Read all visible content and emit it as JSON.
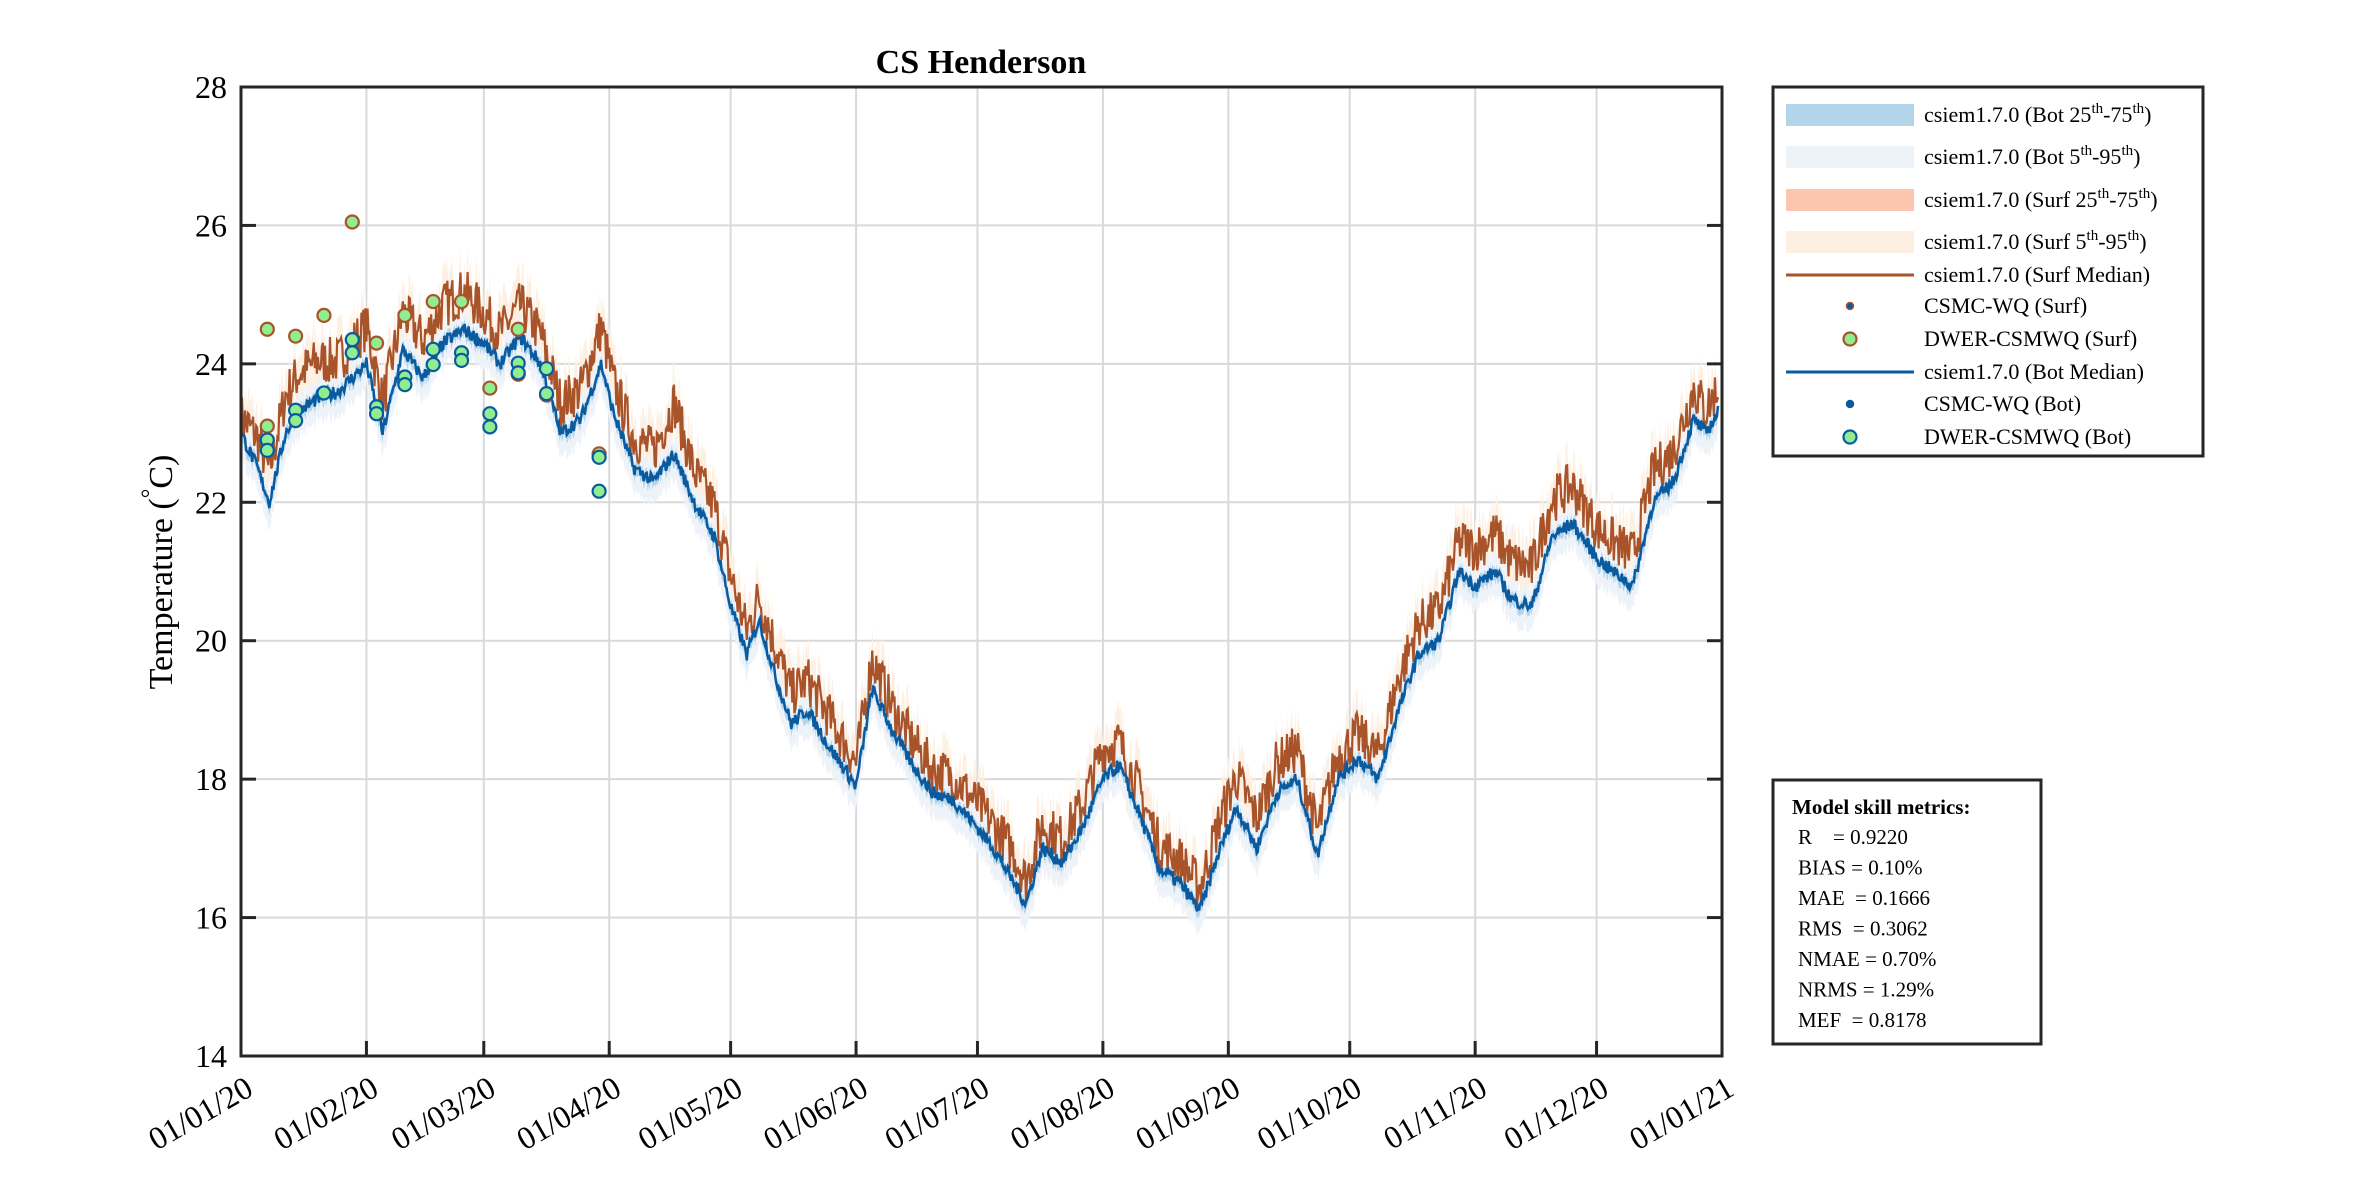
{
  "chart_data": {
    "type": "line",
    "title": "CS Henderson",
    "ylabel_main": "Temperature (",
    "ylabel_deg": "°",
    "ylabel_unit": "C)",
    "xlim": [
      "2020-01-01",
      "2021-01-01"
    ],
    "ylim": [
      14,
      28
    ],
    "yticks": [
      14,
      16,
      18,
      20,
      22,
      24,
      26,
      28
    ],
    "xticks": [
      {
        "date": "2020-01-01",
        "label": "01/01/20"
      },
      {
        "date": "2020-02-01",
        "label": "01/02/20"
      },
      {
        "date": "2020-03-01",
        "label": "01/03/20"
      },
      {
        "date": "2020-04-01",
        "label": "01/04/20"
      },
      {
        "date": "2020-05-01",
        "label": "01/05/20"
      },
      {
        "date": "2020-06-01",
        "label": "01/06/20"
      },
      {
        "date": "2020-07-01",
        "label": "01/07/20"
      },
      {
        "date": "2020-08-01",
        "label": "01/08/20"
      },
      {
        "date": "2020-09-01",
        "label": "01/09/20"
      },
      {
        "date": "2020-10-01",
        "label": "01/10/20"
      },
      {
        "date": "2020-11-01",
        "label": "01/11/20"
      },
      {
        "date": "2020-12-01",
        "label": "01/12/20"
      },
      {
        "date": "2021-01-01",
        "label": "01/01/21"
      }
    ],
    "grid": true,
    "legend_placement": "outside-top-right",
    "colors": {
      "bot_25_75": "#b3d5ea",
      "bot_5_95": "#eef3fa",
      "surf_25_75": "#fcc5ad",
      "surf_5_95": "#fdf0e2",
      "surf_median": "#a8532a",
      "bot_median": "#0a5aa0",
      "obs_fill": "#90ee90"
    },
    "model_dates": [
      "2020-01-01",
      "2020-01-05",
      "2020-01-08",
      "2020-01-12",
      "2020-01-15",
      "2020-01-20",
      "2020-01-25",
      "2020-02-01",
      "2020-02-05",
      "2020-02-10",
      "2020-02-15",
      "2020-02-20",
      "2020-02-25",
      "2020-03-01",
      "2020-03-05",
      "2020-03-10",
      "2020-03-15",
      "2020-03-20",
      "2020-03-25",
      "2020-03-30",
      "2020-04-02",
      "2020-04-07",
      "2020-04-12",
      "2020-04-17",
      "2020-04-22",
      "2020-04-27",
      "2020-05-01",
      "2020-05-05",
      "2020-05-08",
      "2020-05-12",
      "2020-05-16",
      "2020-05-20",
      "2020-05-25",
      "2020-06-01",
      "2020-06-05",
      "2020-06-10",
      "2020-06-15",
      "2020-06-20",
      "2020-06-25",
      "2020-07-01",
      "2020-07-05",
      "2020-07-10",
      "2020-07-13",
      "2020-07-17",
      "2020-07-22",
      "2020-07-27",
      "2020-08-01",
      "2020-08-05",
      "2020-08-10",
      "2020-08-15",
      "2020-08-20",
      "2020-08-25",
      "2020-08-30",
      "2020-09-03",
      "2020-09-08",
      "2020-09-13",
      "2020-09-18",
      "2020-09-23",
      "2020-09-28",
      "2020-10-03",
      "2020-10-08",
      "2020-10-13",
      "2020-10-18",
      "2020-10-23",
      "2020-10-28",
      "2020-11-01",
      "2020-11-06",
      "2020-11-10",
      "2020-11-15",
      "2020-11-20",
      "2020-11-25",
      "2020-12-01",
      "2020-12-05",
      "2020-12-10",
      "2020-12-15",
      "2020-12-20",
      "2020-12-25",
      "2020-12-28",
      "2020-12-31"
    ],
    "series": [
      {
        "name": "csiem1.7.0 (Surf Median)",
        "values": [
          23.1,
          22.8,
          22.3,
          23.4,
          23.7,
          23.9,
          23.9,
          24.4,
          23.3,
          24.6,
          24.2,
          24.7,
          24.9,
          24.6,
          24.3,
          24.7,
          24.3,
          23.3,
          23.5,
          24.4,
          23.6,
          22.8,
          22.6,
          23.3,
          22.3,
          21.8,
          20.8,
          20.0,
          20.5,
          19.8,
          19.1,
          19.3,
          18.8,
          18.1,
          19.6,
          18.9,
          18.4,
          18.0,
          17.9,
          17.5,
          17.2,
          16.8,
          16.4,
          17.2,
          17.0,
          17.5,
          18.3,
          18.4,
          17.7,
          16.9,
          16.7,
          16.3,
          17.3,
          17.9,
          17.3,
          18.1,
          18.3,
          17.1,
          18.2,
          18.5,
          18.2,
          19.3,
          20.1,
          20.3,
          21.3,
          21.2,
          21.4,
          21.0,
          20.9,
          21.9,
          22.1,
          21.5,
          21.3,
          21.1,
          22.3,
          22.6,
          23.5,
          23.2,
          23.5
        ]
      },
      {
        "name": "csiem1.7.0 (Bot Median)",
        "values": [
          23.0,
          22.5,
          22.0,
          23.0,
          23.3,
          23.5,
          23.6,
          24.0,
          23.0,
          24.2,
          23.8,
          24.3,
          24.5,
          24.3,
          24.0,
          24.4,
          24.0,
          23.0,
          23.2,
          24.0,
          23.3,
          22.5,
          22.3,
          22.7,
          22.0,
          21.5,
          20.5,
          19.8,
          20.3,
          19.5,
          18.8,
          19.0,
          18.5,
          17.9,
          19.3,
          18.7,
          18.2,
          17.8,
          17.7,
          17.3,
          17.0,
          16.5,
          16.2,
          17.0,
          16.8,
          17.3,
          18.0,
          18.2,
          17.5,
          16.7,
          16.5,
          16.1,
          17.0,
          17.6,
          17.0,
          17.8,
          18.0,
          16.9,
          18.0,
          18.3,
          18.0,
          19.0,
          19.8,
          20.0,
          21.0,
          20.8,
          21.0,
          20.6,
          20.5,
          21.5,
          21.7,
          21.2,
          21.0,
          20.8,
          22.0,
          22.3,
          23.2,
          23.0,
          23.3
        ]
      }
    ],
    "observations": [
      {
        "name": "DWER-CSMWQ (Surf)",
        "points": [
          {
            "date": "2020-01-07",
            "value": 23.1
          },
          {
            "date": "2020-01-07",
            "value": 24.5
          },
          {
            "date": "2020-01-14",
            "value": 24.4
          },
          {
            "date": "2020-01-21",
            "value": 24.7
          },
          {
            "date": "2020-01-28",
            "value": 26.05
          },
          {
            "date": "2020-02-03",
            "value": 24.3
          },
          {
            "date": "2020-02-10",
            "value": 24.7
          },
          {
            "date": "2020-02-17",
            "value": 24.9
          },
          {
            "date": "2020-02-24",
            "value": 24.9
          },
          {
            "date": "2020-03-02",
            "value": 23.65
          },
          {
            "date": "2020-03-09",
            "value": 24.5
          },
          {
            "date": "2020-03-09",
            "value": 23.85
          },
          {
            "date": "2020-03-16",
            "value": 23.55
          },
          {
            "date": "2020-03-29",
            "value": 22.7
          }
        ]
      },
      {
        "name": "DWER-CSMWQ (Bot)",
        "points": [
          {
            "date": "2020-01-07",
            "value": 22.9
          },
          {
            "date": "2020-01-07",
            "value": 22.75
          },
          {
            "date": "2020-01-14",
            "value": 23.33
          },
          {
            "date": "2020-01-14",
            "value": 23.18
          },
          {
            "date": "2020-01-21",
            "value": 23.58
          },
          {
            "date": "2020-01-28",
            "value": 24.35
          },
          {
            "date": "2020-01-28",
            "value": 24.16
          },
          {
            "date": "2020-02-03",
            "value": 23.38
          },
          {
            "date": "2020-02-03",
            "value": 23.28
          },
          {
            "date": "2020-02-10",
            "value": 23.81
          },
          {
            "date": "2020-02-10",
            "value": 23.7
          },
          {
            "date": "2020-02-17",
            "value": 24.21
          },
          {
            "date": "2020-02-17",
            "value": 23.99
          },
          {
            "date": "2020-02-24",
            "value": 24.16
          },
          {
            "date": "2020-02-24",
            "value": 24.05
          },
          {
            "date": "2020-03-02",
            "value": 23.28
          },
          {
            "date": "2020-03-02",
            "value": 23.09
          },
          {
            "date": "2020-03-09",
            "value": 24.01
          },
          {
            "date": "2020-03-09",
            "value": 23.87
          },
          {
            "date": "2020-03-16",
            "value": 23.93
          },
          {
            "date": "2020-03-16",
            "value": 23.57
          },
          {
            "date": "2020-03-29",
            "value": 22.65
          },
          {
            "date": "2020-03-29",
            "value": 22.16
          }
        ]
      }
    ]
  },
  "legend": {
    "items": [
      {
        "kind": "band",
        "color": "#b3d5ea",
        "pre": "csiem1.7.0 (Bot 25",
        "sup1": "th",
        "mid": "-75",
        "sup2": "th",
        "post": ")"
      },
      {
        "kind": "band",
        "color": "#eef3fa",
        "pre": "csiem1.7.0 (Bot 5",
        "sup1": "th",
        "mid": "-95",
        "sup2": "th",
        "post": ")"
      },
      {
        "kind": "band",
        "color": "#fcc5ad",
        "pre": "csiem1.7.0 (Surf 25",
        "sup1": "th",
        "mid": "-75",
        "sup2": "th",
        "post": ")"
      },
      {
        "kind": "band",
        "color": "#fdf0e2",
        "pre": "csiem1.7.0 (Surf 5",
        "sup1": "th",
        "mid": "-95",
        "sup2": "th",
        "post": ")"
      },
      {
        "kind": "line",
        "color": "#a8532a",
        "pre": "csiem1.7.0 (Surf Median)"
      },
      {
        "kind": "dot",
        "color": "#a8532a",
        "fill": "#0a5aa0",
        "pre": "CSMC-WQ (Surf)"
      },
      {
        "kind": "circle",
        "color": "#a8532a",
        "fill": "#90ee90",
        "pre": "DWER-CSMWQ (Surf)"
      },
      {
        "kind": "line",
        "color": "#0a5aa0",
        "pre": "csiem1.7.0 (Bot Median)"
      },
      {
        "kind": "dot",
        "color": "#0a5aa0",
        "fill": "#0a5aa0",
        "pre": "CSMC-WQ (Bot)"
      },
      {
        "kind": "circle",
        "color": "#0a5aa0",
        "fill": "#90ee90",
        "pre": "DWER-CSMWQ (Bot)"
      }
    ]
  },
  "metrics": {
    "title": "Model skill metrics:",
    "lines": [
      "R    = 0.9220",
      "BIAS = 0.10%",
      "MAE  = 0.1666",
      "RMS  = 0.3062",
      "NMAE = 0.70%",
      "NRMS = 1.29%",
      "MEF  = 0.8178"
    ]
  }
}
